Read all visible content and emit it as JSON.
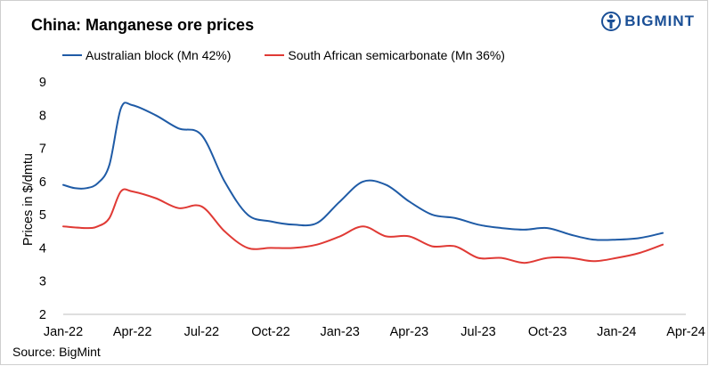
{
  "title": "China: Manganese ore prices",
  "brand": {
    "name": "BIGMINT",
    "logo_icon": "bigmint-logo-icon"
  },
  "source": "Source:  BigMint",
  "colors": {
    "australian": "#1f5ba6",
    "south_african": "#e03a35",
    "brand": "#1a4f96"
  },
  "chart_data": {
    "type": "line",
    "title": "China: Manganese ore prices",
    "xlabel": "",
    "ylabel": "Prices in $/dmtu",
    "ylim": [
      2,
      9
    ],
    "yticks": [
      2,
      3,
      4,
      5,
      6,
      7,
      8,
      9
    ],
    "grid": false,
    "legend_position": "top",
    "xlim": [
      0,
      27
    ],
    "xticks": [
      {
        "x": 0,
        "label": "Jan-22"
      },
      {
        "x": 3,
        "label": "Apr-22"
      },
      {
        "x": 6,
        "label": "Jul-22"
      },
      {
        "x": 9,
        "label": "Oct-22"
      },
      {
        "x": 12,
        "label": "Jan-23"
      },
      {
        "x": 15,
        "label": "Apr-23"
      },
      {
        "x": 18,
        "label": "Jul-23"
      },
      {
        "x": 21,
        "label": "Oct-23"
      },
      {
        "x": 24,
        "label": "Jan-24"
      },
      {
        "x": 27,
        "label": "Apr-24"
      }
    ],
    "series": [
      {
        "name": "Australian block (Mn 42%)",
        "color": "#1f5ba6",
        "points": [
          [
            0,
            5.9
          ],
          [
            0.5,
            5.8
          ],
          [
            1,
            5.8
          ],
          [
            1.5,
            5.95
          ],
          [
            2,
            6.5
          ],
          [
            2.5,
            8.2
          ],
          [
            3,
            8.3
          ],
          [
            4,
            8.0
          ],
          [
            5,
            7.6
          ],
          [
            6,
            7.4
          ],
          [
            7,
            6.0
          ],
          [
            8,
            5.0
          ],
          [
            9,
            4.8
          ],
          [
            10,
            4.7
          ],
          [
            11,
            4.75
          ],
          [
            12,
            5.4
          ],
          [
            13,
            6.0
          ],
          [
            14,
            5.9
          ],
          [
            15,
            5.4
          ],
          [
            16,
            5.0
          ],
          [
            17,
            4.9
          ],
          [
            18,
            4.7
          ],
          [
            19,
            4.6
          ],
          [
            20,
            4.55
          ],
          [
            21,
            4.6
          ],
          [
            22,
            4.4
          ],
          [
            23,
            4.25
          ],
          [
            24,
            4.25
          ],
          [
            25,
            4.3
          ],
          [
            26,
            4.45
          ]
        ]
      },
      {
        "name": "South African semicarbonate (Mn 36%)",
        "color": "#e03a35",
        "points": [
          [
            0,
            4.65
          ],
          [
            1,
            4.6
          ],
          [
            1.5,
            4.65
          ],
          [
            2,
            4.9
          ],
          [
            2.5,
            5.7
          ],
          [
            3,
            5.7
          ],
          [
            4,
            5.5
          ],
          [
            5,
            5.2
          ],
          [
            6,
            5.25
          ],
          [
            7,
            4.5
          ],
          [
            8,
            4.0
          ],
          [
            9,
            4.0
          ],
          [
            10,
            4.0
          ],
          [
            11,
            4.1
          ],
          [
            12,
            4.35
          ],
          [
            13,
            4.65
          ],
          [
            14,
            4.35
          ],
          [
            15,
            4.35
          ],
          [
            16,
            4.05
          ],
          [
            17,
            4.05
          ],
          [
            18,
            3.7
          ],
          [
            19,
            3.7
          ],
          [
            20,
            3.55
          ],
          [
            21,
            3.7
          ],
          [
            22,
            3.7
          ],
          [
            23,
            3.6
          ],
          [
            24,
            3.7
          ],
          [
            25,
            3.85
          ],
          [
            26,
            4.1
          ]
        ]
      }
    ]
  }
}
